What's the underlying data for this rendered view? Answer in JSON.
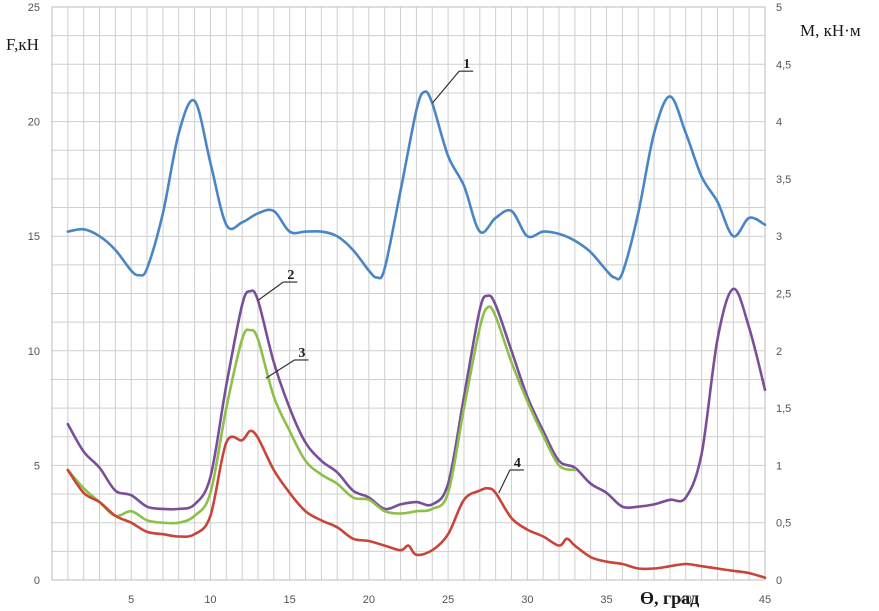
{
  "chart_data": {
    "type": "line",
    "grid": true,
    "y_left": {
      "label": "F,кН",
      "ticks": [
        "0",
        "5",
        "10",
        "15",
        "20",
        "25"
      ],
      "lim": [
        0,
        25
      ]
    },
    "y_right": {
      "label": "M, кН·м",
      "ticks": [
        "0",
        "0,5",
        "1",
        "1,5",
        "2",
        "2,5",
        "3",
        "3,5",
        "4",
        "4,5",
        "5"
      ],
      "lim": [
        0,
        5
      ]
    },
    "x_axis": {
      "label": "ϴ, град",
      "ticks": [
        "5",
        "10",
        "15",
        "20",
        "25",
        "30",
        "35",
        "40",
        "45"
      ],
      "lim": [
        0,
        45
      ]
    },
    "series": [
      {
        "name": "1",
        "axis": "left",
        "color": "#4a86c5",
        "x": [
          1,
          2,
          3,
          4,
          5,
          5.5,
          6,
          7,
          8,
          9,
          10,
          11,
          12,
          13,
          14,
          15,
          16,
          17,
          18,
          19,
          20,
          20.5,
          21,
          22,
          23,
          23.5,
          24,
          25,
          26,
          27,
          28,
          29,
          30,
          31,
          32,
          33,
          34,
          35,
          35.5,
          36,
          37,
          38,
          39,
          40,
          41,
          42,
          43,
          44,
          45
        ],
        "y": [
          15.2,
          15.3,
          15.0,
          14.4,
          13.5,
          13.3,
          13.6,
          16.0,
          19.5,
          20.9,
          18.2,
          15.5,
          15.6,
          16.0,
          16.1,
          15.2,
          15.2,
          15.2,
          15.0,
          14.4,
          13.5,
          13.2,
          13.6,
          17.0,
          20.5,
          21.3,
          20.8,
          18.5,
          17.2,
          15.2,
          15.8,
          16.1,
          15.0,
          15.2,
          15.1,
          14.8,
          14.3,
          13.5,
          13.2,
          13.4,
          16.0,
          19.5,
          21.1,
          19.5,
          17.6,
          16.5,
          15.0,
          15.8,
          15.5
        ]
      },
      {
        "name": "2",
        "axis": "left",
        "color": "#7a4f9a",
        "x": [
          1,
          2,
          3,
          4,
          5,
          6,
          7,
          8,
          9,
          10,
          11,
          12,
          12.5,
          13,
          14,
          15,
          16,
          17,
          18,
          19,
          20,
          21,
          22,
          23,
          24,
          25,
          26,
          27,
          27.5,
          28,
          29,
          30,
          31,
          32,
          33,
          34,
          35,
          36,
          37,
          38,
          39,
          40,
          41,
          42,
          43,
          44,
          45
        ],
        "y": [
          6.8,
          5.6,
          4.9,
          3.9,
          3.7,
          3.2,
          3.1,
          3.1,
          3.3,
          4.5,
          8.5,
          12.0,
          12.6,
          12.2,
          9.5,
          7.5,
          6.0,
          5.2,
          4.7,
          3.9,
          3.6,
          3.1,
          3.3,
          3.4,
          3.3,
          4.2,
          8.0,
          11.8,
          12.4,
          12.0,
          10.0,
          8.0,
          6.5,
          5.2,
          4.9,
          4.2,
          3.8,
          3.2,
          3.2,
          3.3,
          3.5,
          3.6,
          5.5,
          10.5,
          12.7,
          11.0,
          8.3
        ]
      },
      {
        "name": "3",
        "axis": "left",
        "color": "#8dc04b",
        "x": [
          1,
          2,
          3,
          4,
          5,
          6,
          7,
          8,
          9,
          10,
          11,
          12,
          12.5,
          13,
          14,
          15,
          16,
          17,
          18,
          19,
          20,
          21,
          22,
          23,
          24,
          25,
          26,
          27,
          27.5,
          28,
          29,
          30,
          31,
          32,
          33
        ],
        "y": [
          4.8,
          4.0,
          3.4,
          2.8,
          3.0,
          2.6,
          2.5,
          2.5,
          2.8,
          3.8,
          7.5,
          10.5,
          10.9,
          10.5,
          8.0,
          6.5,
          5.2,
          4.6,
          4.2,
          3.6,
          3.5,
          3.0,
          2.9,
          3.0,
          3.1,
          3.8,
          7.5,
          11.0,
          11.9,
          11.5,
          9.5,
          7.8,
          6.3,
          5.0,
          4.8
        ]
      },
      {
        "name": "4",
        "axis": "left",
        "color": "#c8453a",
        "x": [
          1,
          2,
          3,
          4,
          5,
          6,
          7,
          8,
          9,
          10,
          11,
          12,
          12.5,
          13,
          14,
          15,
          16,
          17,
          18,
          19,
          20,
          21,
          22,
          22.5,
          23,
          24,
          25,
          26,
          27,
          27.5,
          28,
          29,
          30,
          31,
          32,
          32.5,
          33,
          34,
          35,
          36,
          37,
          38,
          39,
          40,
          41,
          42,
          43,
          44,
          45
        ],
        "y": [
          4.8,
          3.8,
          3.4,
          2.8,
          2.5,
          2.1,
          2.0,
          1.9,
          2.0,
          2.8,
          6.0,
          6.1,
          6.5,
          6.2,
          4.8,
          3.8,
          3.0,
          2.6,
          2.3,
          1.8,
          1.7,
          1.5,
          1.3,
          1.5,
          1.1,
          1.3,
          2.0,
          3.5,
          3.9,
          4.0,
          3.8,
          2.7,
          2.2,
          1.9,
          1.5,
          1.8,
          1.5,
          1.0,
          0.8,
          0.7,
          0.5,
          0.5,
          0.6,
          0.7,
          0.6,
          0.5,
          0.4,
          0.3,
          0.1
        ]
      }
    ],
    "annotations": [
      {
        "text": "1",
        "series": 0,
        "point_x": 24,
        "point_y": 20.8,
        "label_x": 25.7,
        "label_y": 22.2
      },
      {
        "text": "2",
        "series": 1,
        "point_x": 13,
        "point_y": 12.2,
        "label_x": 14.6,
        "label_y": 13.0
      },
      {
        "text": "3",
        "series": 2,
        "point_x": 13.5,
        "point_y": 8.8,
        "label_x": 15.3,
        "label_y": 9.6
      },
      {
        "text": "4",
        "series": 3,
        "point_x": 28.2,
        "point_y": 3.8,
        "label_x": 28.9,
        "label_y": 4.8
      }
    ]
  }
}
